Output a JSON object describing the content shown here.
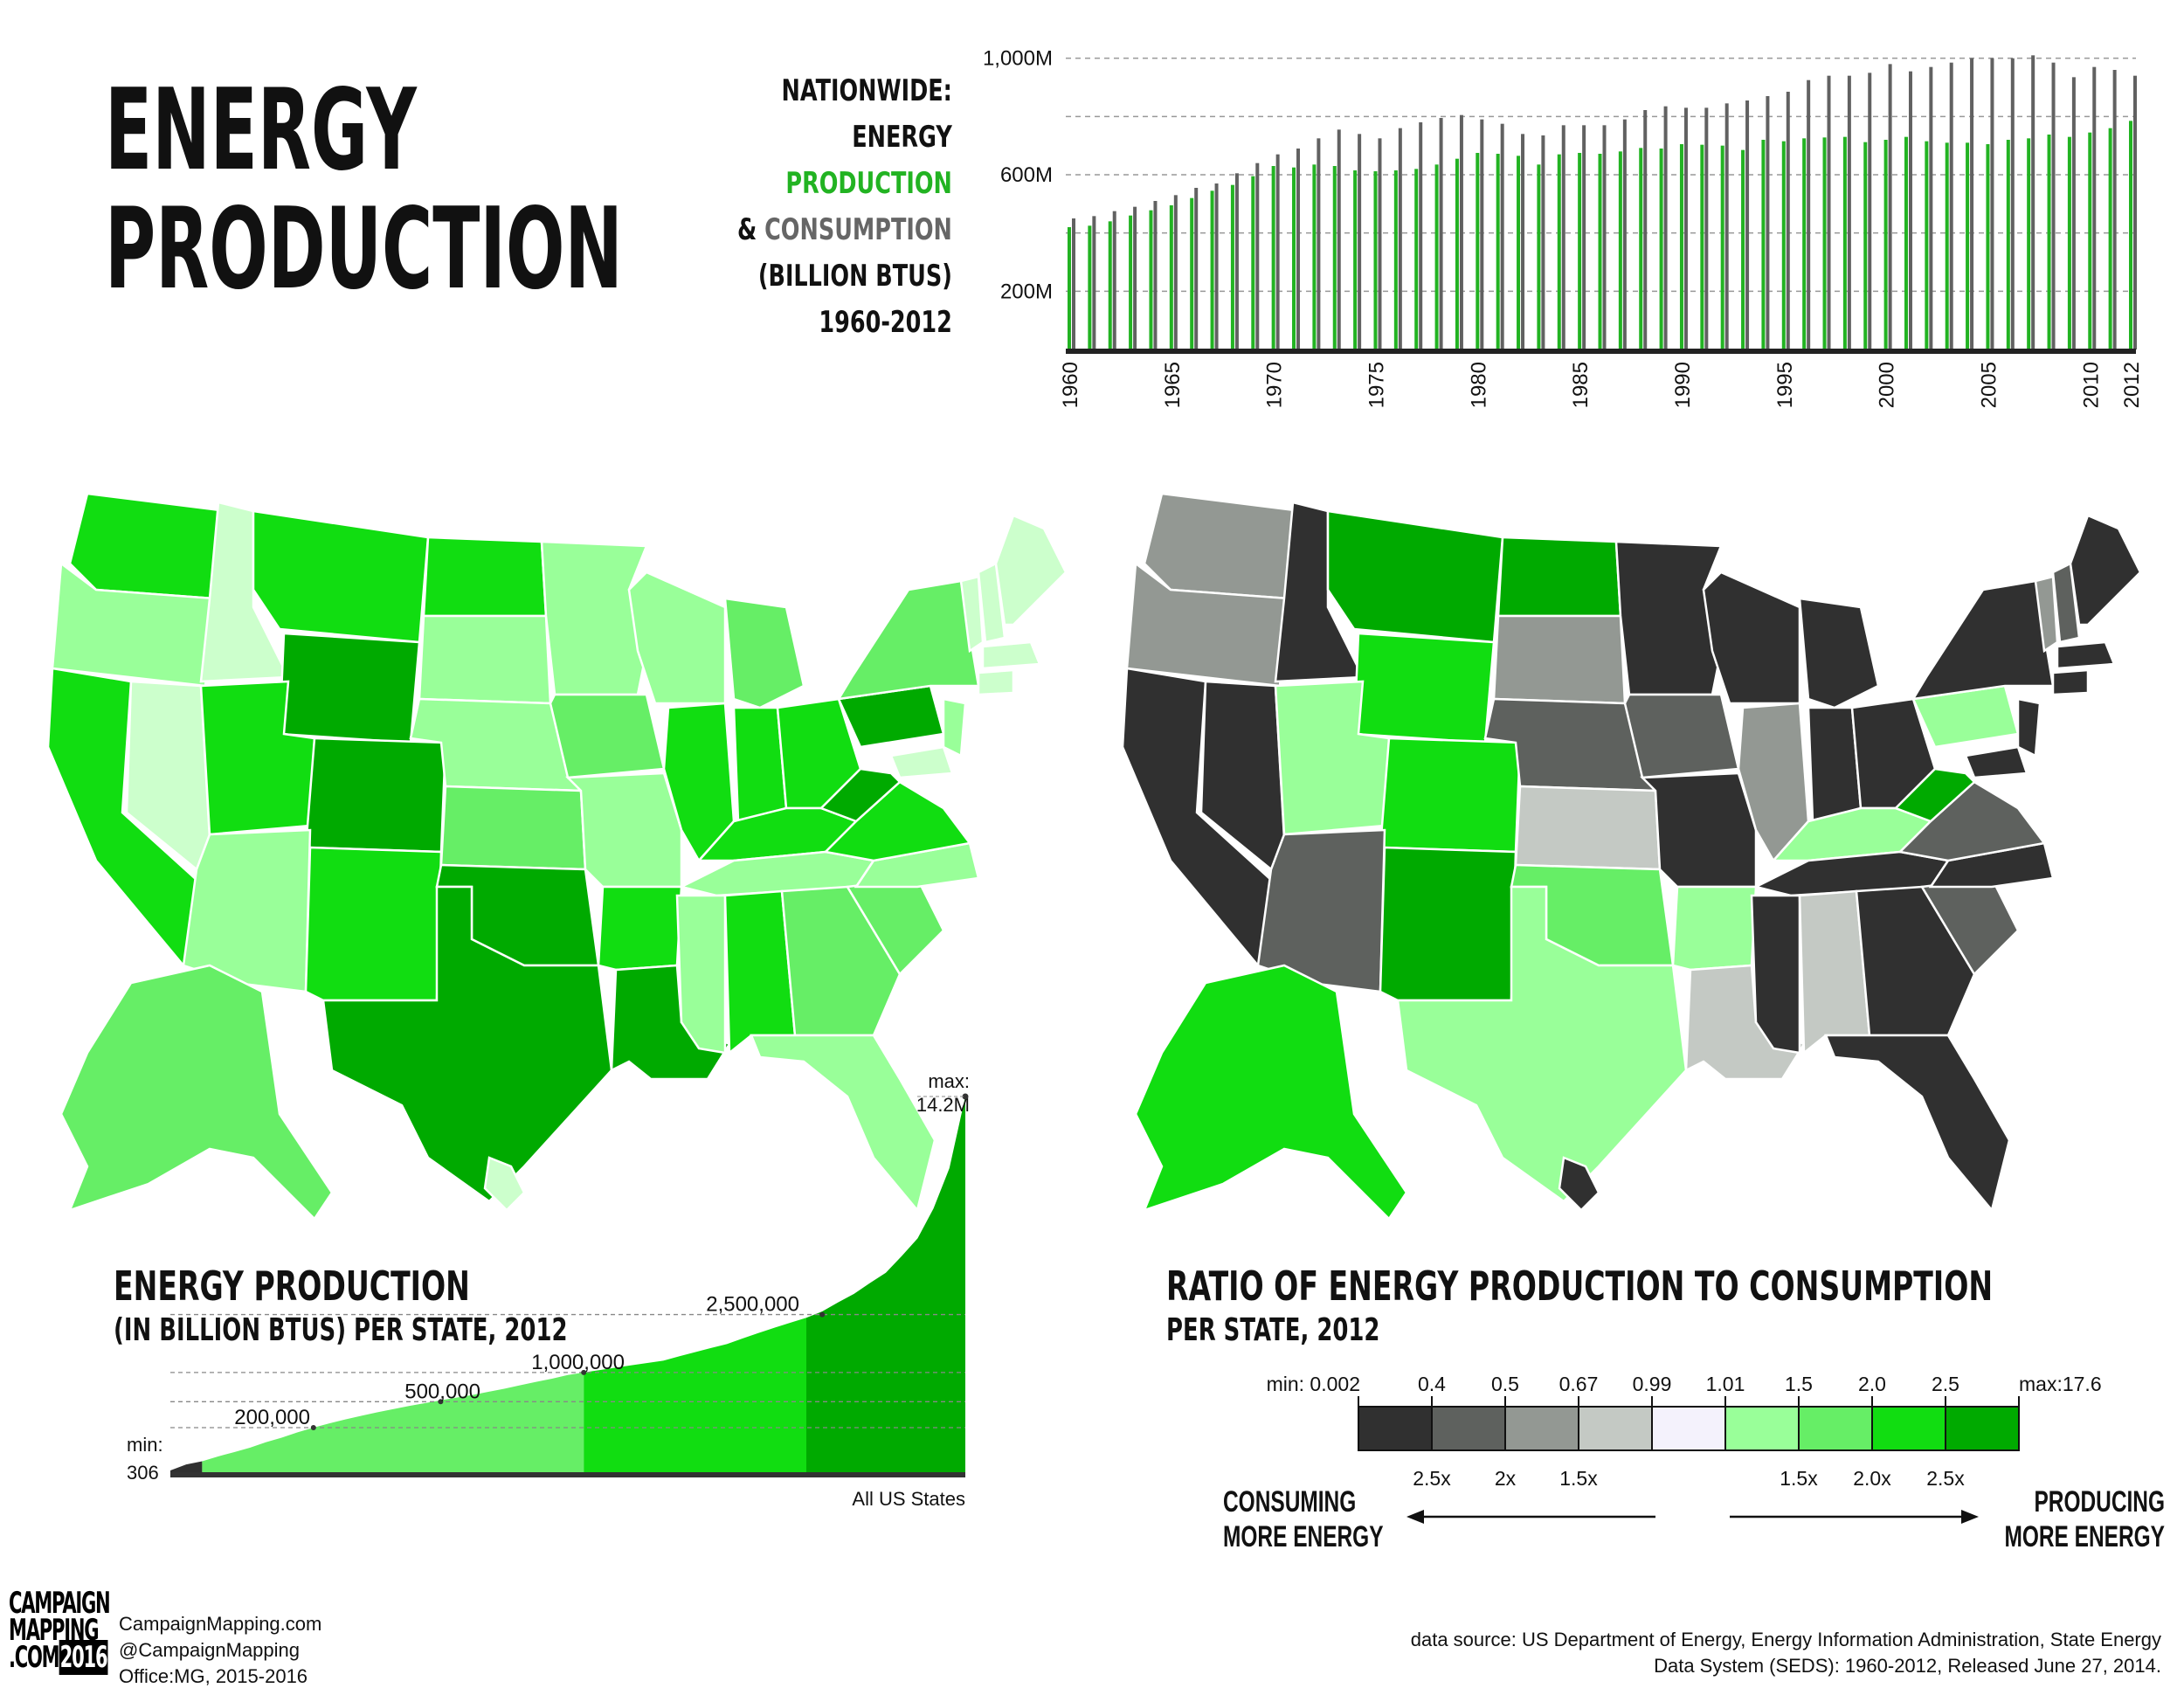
{
  "title": {
    "line1": "ENERGY",
    "line2": "PRODUCTION"
  },
  "nationwide": {
    "l1": "NATIONWIDE:",
    "l2": "ENERGY",
    "l3": "PRODUCTION",
    "l4_amp": "&",
    "l4_cons": "CONSUMPTION",
    "l5": "(BILLION BTUS)",
    "l6": "1960-2012"
  },
  "colors": {
    "production": "#22b322",
    "consumption": "#616161",
    "g1": "#ccffcc",
    "g2": "#99ff99",
    "g3": "#66ee66",
    "g4": "#11dd11",
    "g5": "#00aa00",
    "d1": "#303030",
    "d2": "#5e615e",
    "d3": "#939893",
    "d4": "#c4c9c4",
    "mid": "#f4f2fc"
  },
  "chart_data": [
    {
      "type": "bar",
      "title": "NATIONWIDE: ENERGY PRODUCTION & CONSUMPTION (BILLION BTUS) 1960-2012",
      "x": [
        1960,
        1961,
        1962,
        1963,
        1964,
        1965,
        1966,
        1967,
        1968,
        1969,
        1970,
        1971,
        1972,
        1973,
        1974,
        1975,
        1976,
        1977,
        1978,
        1979,
        1980,
        1981,
        1982,
        1983,
        1984,
        1985,
        1986,
        1987,
        1988,
        1989,
        1990,
        1991,
        1992,
        1993,
        1994,
        1995,
        1996,
        1997,
        1998,
        1999,
        2000,
        2001,
        2002,
        2003,
        2004,
        2005,
        2006,
        2007,
        2008,
        2009,
        2010,
        2011,
        2012
      ],
      "x_tick_labels": [
        "1960",
        "1965",
        "1970",
        "1975",
        "1980",
        "1985",
        "1990",
        "1995",
        "2000",
        "2005",
        "2010",
        "2012"
      ],
      "y_tick_labels": [
        "1,000M",
        "600M",
        "200M"
      ],
      "y_ticks": [
        200,
        400,
        600,
        800,
        1000
      ],
      "ylim": [
        0,
        1050
      ],
      "series": [
        {
          "name": "PRODUCTION",
          "values": [
            420,
            425,
            440,
            460,
            478,
            495,
            520,
            545,
            565,
            595,
            630,
            625,
            635,
            630,
            615,
            612,
            615,
            620,
            635,
            655,
            675,
            672,
            665,
            635,
            670,
            675,
            672,
            680,
            692,
            690,
            705,
            703,
            700,
            685,
            720,
            715,
            725,
            728,
            730,
            712,
            720,
            730,
            715,
            710,
            710,
            705,
            720,
            725,
            738,
            730,
            745,
            760,
            785
          ]
        },
        {
          "name": "CONSUMPTION",
          "values": [
            450,
            458,
            475,
            490,
            510,
            530,
            555,
            570,
            605,
            640,
            670,
            690,
            725,
            755,
            740,
            725,
            760,
            780,
            795,
            805,
            790,
            775,
            740,
            735,
            770,
            770,
            770,
            790,
            822,
            835,
            830,
            830,
            845,
            855,
            870,
            885,
            925,
            940,
            940,
            950,
            980,
            955,
            970,
            985,
            1000,
            1000,
            1000,
            1010,
            985,
            935,
            970,
            960,
            940
          ]
        }
      ]
    },
    {
      "type": "area",
      "title": "ENERGY PRODUCTION",
      "subtitle": "(IN BILLION BTUS) PER STATE, 2012",
      "x_label": "All US States",
      "y_ticks": [
        "200,000",
        "500,000",
        "1,000,000",
        "2,500,000"
      ],
      "min_label": "min:",
      "min_value": "306",
      "max_label": "max:",
      "max_value": "14.2M",
      "values": [
        306,
        6000,
        12000,
        25000,
        40000,
        60000,
        90000,
        120000,
        160000,
        200000,
        240000,
        280000,
        320000,
        360000,
        400000,
        440000,
        480000,
        520000,
        560000,
        600000,
        650000,
        700000,
        760000,
        820000,
        880000,
        950000,
        1000000,
        1050000,
        1100000,
        1150000,
        1200000,
        1250000,
        1350000,
        1450000,
        1550000,
        1650000,
        1800000,
        1950000,
        2100000,
        2250000,
        2400000,
        2600000,
        2900000,
        3200000,
        3600000,
        4000000,
        4700000,
        5500000,
        7000000,
        9300000,
        14200000
      ],
      "colors_by_level": [
        "#303030",
        "#66ee66",
        "#11dd11",
        "#00aa00"
      ]
    },
    {
      "type": "heatmap",
      "title": "RATIO OF ENERGY PRODUCTION TO CONSUMPTION",
      "subtitle": "PER STATE, 2012",
      "scale_top_labels": [
        "min: 0.002",
        "0.4",
        "0.5",
        "0.67",
        "0.99",
        "1.01",
        "1.5",
        "2.0",
        "2.5",
        "max:17.6"
      ],
      "scale_bottom_labels": [
        "2.5x",
        "2x",
        "1.5x",
        "1.5x",
        "2.0x",
        "2.5x"
      ],
      "scale_colors": [
        "#303030",
        "#5e615e",
        "#939893",
        "#c4c9c4",
        "#f4f2fc",
        "#99ff99",
        "#66ee66",
        "#11dd11",
        "#00aa00"
      ],
      "left_note": [
        "CONSUMING",
        "MORE ENERGY"
      ],
      "right_note": [
        "PRODUCING",
        "MORE ENERGY"
      ]
    }
  ],
  "footer": {
    "logo_lines": [
      "CAMPAIGN",
      "MAPPING",
      ".COM",
      "2016"
    ],
    "site": "CampaignMapping.com",
    "handle": "@CampaignMapping",
    "office": "Office:MG, 2015-2016",
    "source1": "data source: US Department of Energy, Energy Information Administration, State Energy",
    "source2": "Data System (SEDS): 1960-2012, Released June 27, 2014."
  }
}
